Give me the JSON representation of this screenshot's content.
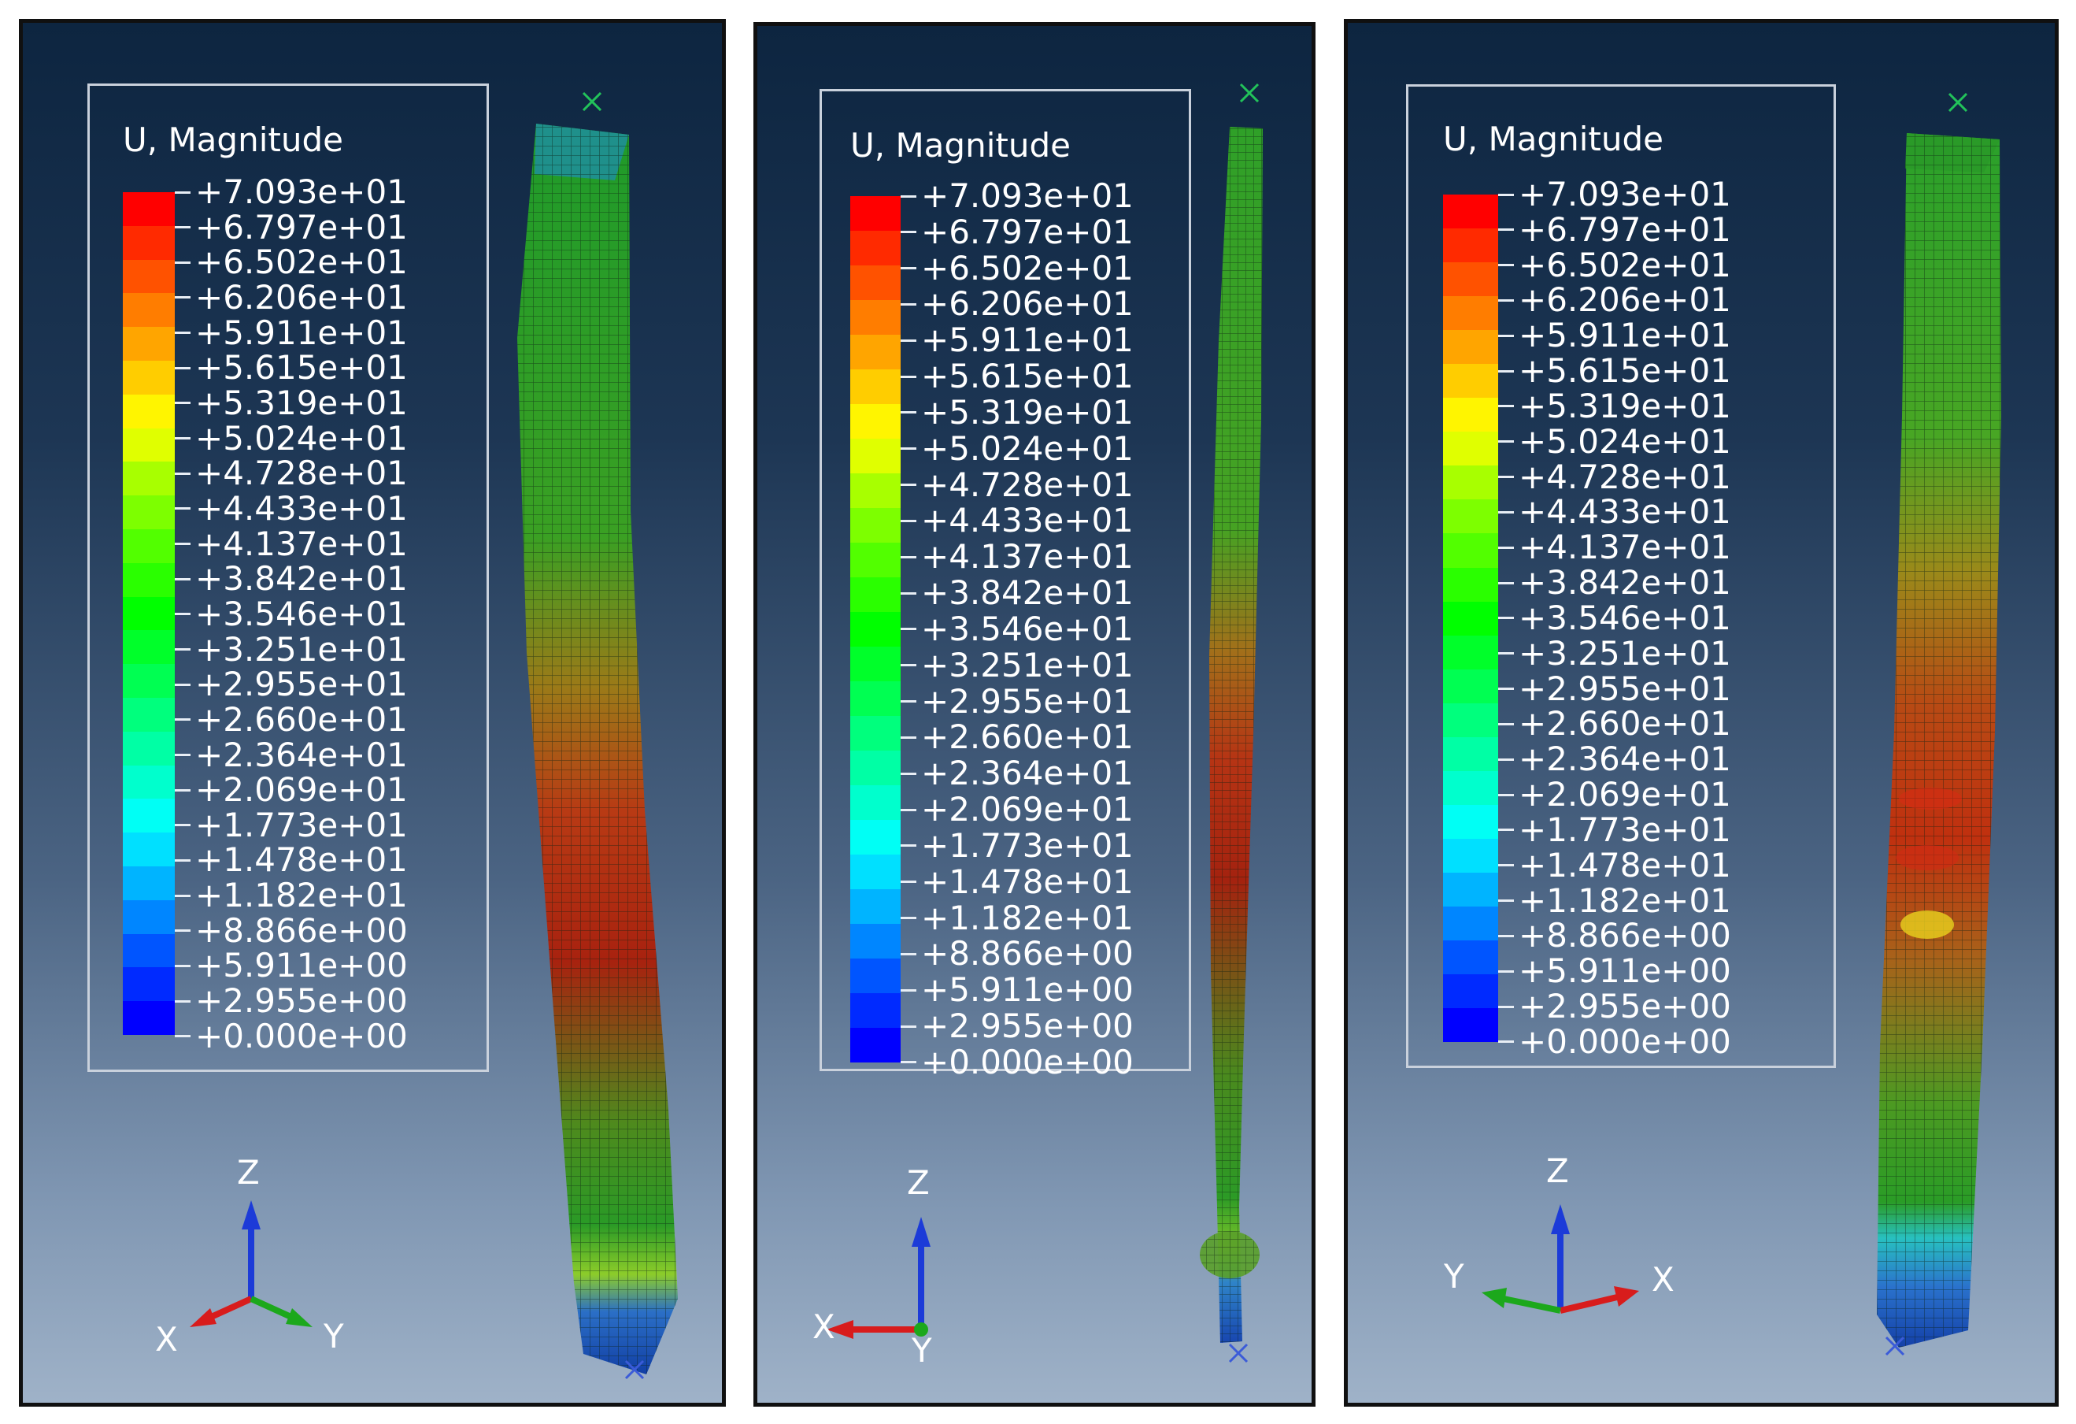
{
  "legend": {
    "title": "U, Magnitude",
    "labels": [
      "+7.093e+01",
      "+6.797e+01",
      "+6.502e+01",
      "+6.206e+01",
      "+5.911e+01",
      "+5.615e+01",
      "+5.319e+01",
      "+5.024e+01",
      "+4.728e+01",
      "+4.433e+01",
      "+4.137e+01",
      "+3.842e+01",
      "+3.546e+01",
      "+3.251e+01",
      "+2.955e+01",
      "+2.660e+01",
      "+2.364e+01",
      "+2.069e+01",
      "+1.773e+01",
      "+1.478e+01",
      "+1.182e+01",
      "+8.866e+00",
      "+5.911e+00",
      "+2.955e+00",
      "+0.000e+00"
    ],
    "colors": [
      "#ff0000",
      "#ff2a00",
      "#ff5200",
      "#ff7d00",
      "#ffa500",
      "#ffcd00",
      "#fff500",
      "#e0ff00",
      "#a8ff00",
      "#7dff00",
      "#52ff00",
      "#2aff00",
      "#00ff00",
      "#00ff2a",
      "#00ff52",
      "#00ff7d",
      "#00ffa5",
      "#00ffcd",
      "#00fff5",
      "#00e0ff",
      "#00b4ff",
      "#0086ff",
      "#0055ff",
      "#002aff",
      "#0000ff"
    ]
  },
  "triads": [
    {
      "z": "Z",
      "left": "X",
      "right": "Y"
    },
    {
      "z": "Z",
      "left": "X",
      "right": "Y"
    },
    {
      "z": "Z",
      "left": "Y",
      "right": "X"
    }
  ]
}
